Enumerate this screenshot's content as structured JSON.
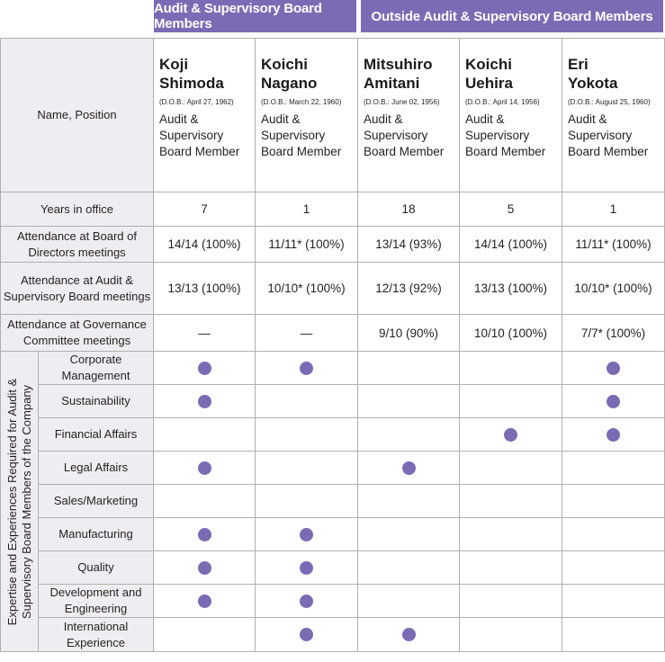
{
  "headers": {
    "group1": "Audit & Supervisory Board Members",
    "group2": "Outside Audit & Supervisory Board Members"
  },
  "row_labels": {
    "name_position": "Name, Position",
    "years": "Years in office",
    "att_board": "Attendance at Board of Directors meetings",
    "att_audit": "Attendance at Audit & Supervisory Board meetings",
    "att_gov": "Attendance at Governance Committee meetings",
    "expertise_group": "Expertise and Experiences Required for Audit & Supervisory Board Members of the Company"
  },
  "members": [
    {
      "first": "Koji",
      "last": "Shimoda",
      "dob": "(D.O.B.: April 27, 1962)",
      "position": "Audit & Supervisory Board Member",
      "years": "7",
      "att_board": "14/14 (100%)",
      "att_audit": "13/13 (100%)",
      "att_gov": "—"
    },
    {
      "first": "Koichi",
      "last": "Nagano",
      "dob": "(D.O.B.: March 22, 1960)",
      "position": "Audit & Supervisory Board Member",
      "years": "1",
      "att_board": "11/11* (100%)",
      "att_audit": "10/10* (100%)",
      "att_gov": "—"
    },
    {
      "first": "Mitsuhiro",
      "last": "Amitani",
      "dob": "(D.O.B.: June 02, 1956)",
      "position": "Audit & Supervisory Board Member",
      "years": "18",
      "att_board": "13/14 (93%)",
      "att_audit": "12/13 (92%)",
      "att_gov": "9/10 (90%)"
    },
    {
      "first": "Koichi",
      "last": "Uehira",
      "dob": "(D.O.B.: April 14, 1956)",
      "position": "Audit & Supervisory Board Member",
      "years": "5",
      "att_board": "14/14 (100%)",
      "att_audit": "13/13 (100%)",
      "att_gov": "10/10 (100%)"
    },
    {
      "first": "Eri",
      "last": "Yokota",
      "dob": "(D.O.B.: August 25, 1960)",
      "position": "Audit & Supervisory Board Member",
      "years": "1",
      "att_board": "11/11* (100%)",
      "att_audit": "10/10* (100%)",
      "att_gov": "7/7* (100%)"
    }
  ],
  "expertise": [
    {
      "label": "Corporate Management",
      "marks": [
        true,
        true,
        false,
        false,
        true
      ]
    },
    {
      "label": "Sustainability",
      "marks": [
        true,
        false,
        false,
        false,
        true
      ]
    },
    {
      "label": "Financial Affairs",
      "marks": [
        false,
        false,
        false,
        true,
        true
      ]
    },
    {
      "label": "Legal Affairs",
      "marks": [
        true,
        false,
        true,
        false,
        false
      ]
    },
    {
      "label": "Sales/Marketing",
      "marks": [
        false,
        false,
        false,
        false,
        false
      ]
    },
    {
      "label": "Manufacturing",
      "marks": [
        true,
        true,
        false,
        false,
        false
      ]
    },
    {
      "label": "Quality",
      "marks": [
        true,
        true,
        false,
        false,
        false
      ]
    },
    {
      "label": "Development and Engineering",
      "marks": [
        true,
        true,
        false,
        false,
        false
      ]
    },
    {
      "label": "International Experience",
      "marks": [
        false,
        true,
        true,
        false,
        false
      ]
    }
  ],
  "colors": {
    "accent": "#7b6bb5",
    "label_bg": "#eeeef2",
    "border": "#b0b0b0"
  }
}
